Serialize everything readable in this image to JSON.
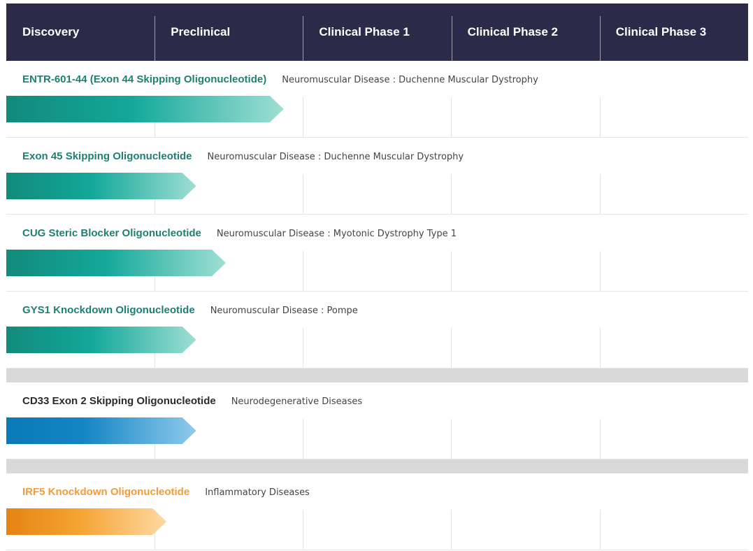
{
  "header": {
    "phases": [
      "Discovery",
      "Preclinical",
      "Clinical Phase 1",
      "Clinical Phase 2",
      "Clinical Phase 3"
    ]
  },
  "programs": [
    {
      "name": "ENTR-601-44 (Exon 44 Skipping Oligonucleotide)",
      "indication": "Neuromuscular Disease : Duchenne Muscular Dystrophy",
      "progress_phases": 1.87,
      "color": "#13a89a"
    },
    {
      "name": "Exon 45 Skipping Oligonucleotide",
      "indication": "Neuromuscular Disease : Duchenne Muscular Dystrophy",
      "progress_phases": 1.28,
      "color": "#13a89a"
    },
    {
      "name": "CUG Steric Blocker Oligonucleotide",
      "indication": "Neuromuscular Disease : Myotonic Dystrophy Type 1",
      "progress_phases": 1.48,
      "color": "#13a89a"
    },
    {
      "name": "GYS1 Knockdown Oligonucleotide",
      "indication": "Neuromuscular Disease : Pompe",
      "progress_phases": 1.28,
      "color": "#13a89a"
    },
    {
      "name": "CD33 Exon 2 Skipping Oligonucleotide",
      "indication": "Neurodegenerative Diseases",
      "progress_phases": 1.28,
      "color": "#1384c4"
    },
    {
      "name": "IRF5 Knockdown Oligonucleotide",
      "indication": "Inflammatory Diseases",
      "progress_phases": 1.08,
      "color": "#f5a331"
    }
  ],
  "colors": {
    "header_bg": "#2b2a48",
    "neuromuscular": "#1f7f74",
    "neurodegenerative": "#2b2b2b",
    "inflammatory": "#f29d38",
    "separator": "#d9d9d9"
  }
}
